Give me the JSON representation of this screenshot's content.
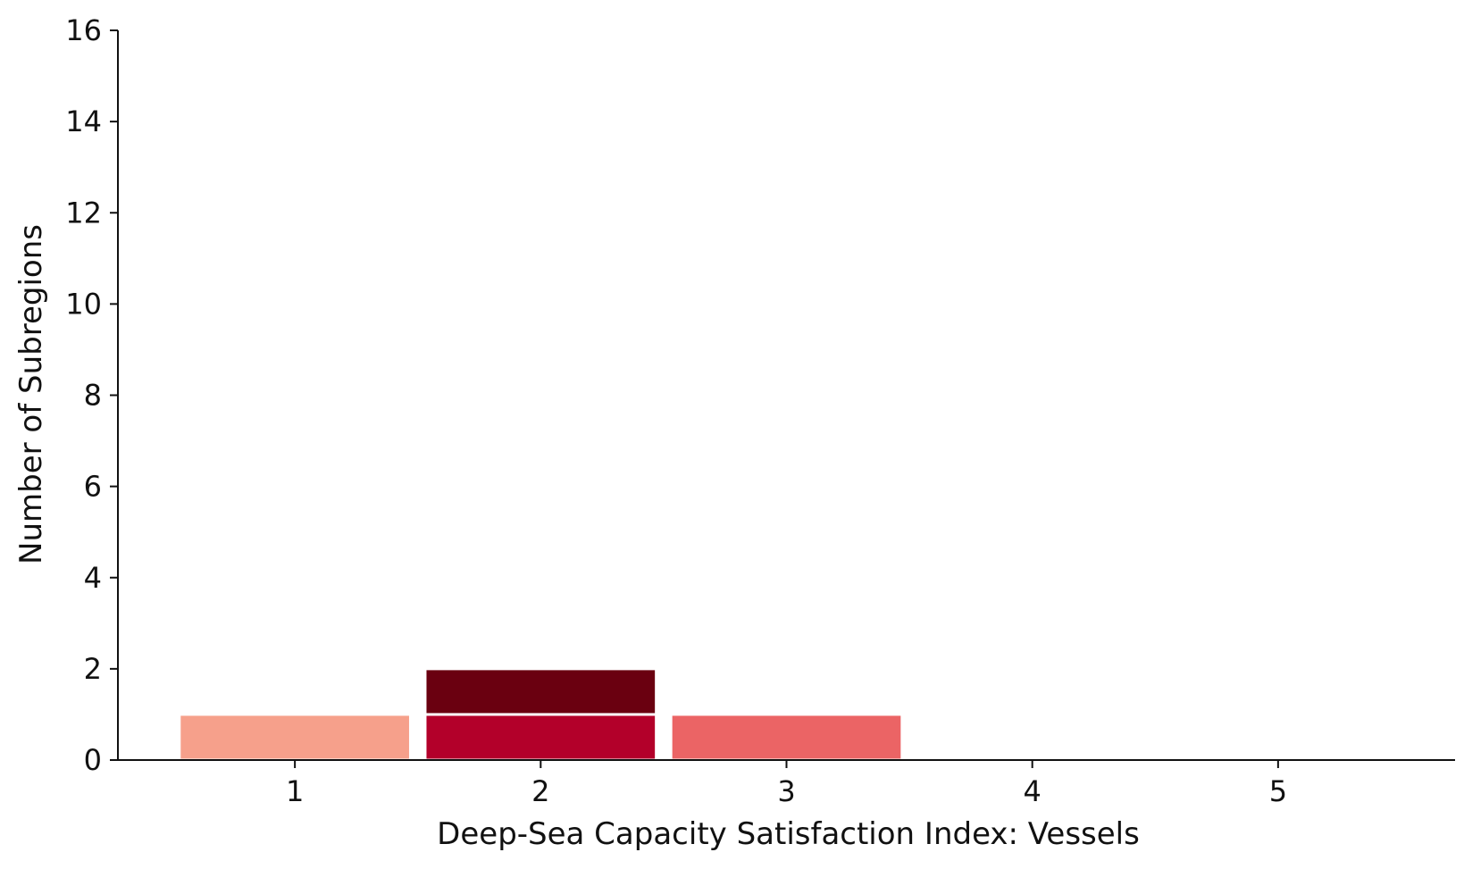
{
  "chart_data": {
    "type": "bar",
    "stacked": true,
    "title": "",
    "xlabel": "Deep-Sea Capacity Satisfaction Index: Vessels",
    "ylabel": "Number of Subregions",
    "categories": [
      1,
      2,
      3,
      4,
      5
    ],
    "xlim": [
      0.28,
      5.72
    ],
    "ylim": [
      0,
      16
    ],
    "yticks": [
      0,
      2,
      4,
      6,
      8,
      10,
      12,
      14,
      16
    ],
    "bars": [
      {
        "x": 1,
        "base": 0,
        "value": 1,
        "color": "#F6A08B"
      },
      {
        "x": 2,
        "base": 0,
        "value": 1,
        "color": "#B3002A"
      },
      {
        "x": 2,
        "base": 1,
        "value": 1,
        "color": "#6A0010"
      },
      {
        "x": 3,
        "base": 0,
        "value": 1,
        "color": "#EB6465"
      }
    ],
    "grid": false,
    "legend": "none"
  },
  "colors": {
    "axis": "#111111",
    "bar_edge": "#ffffff"
  }
}
